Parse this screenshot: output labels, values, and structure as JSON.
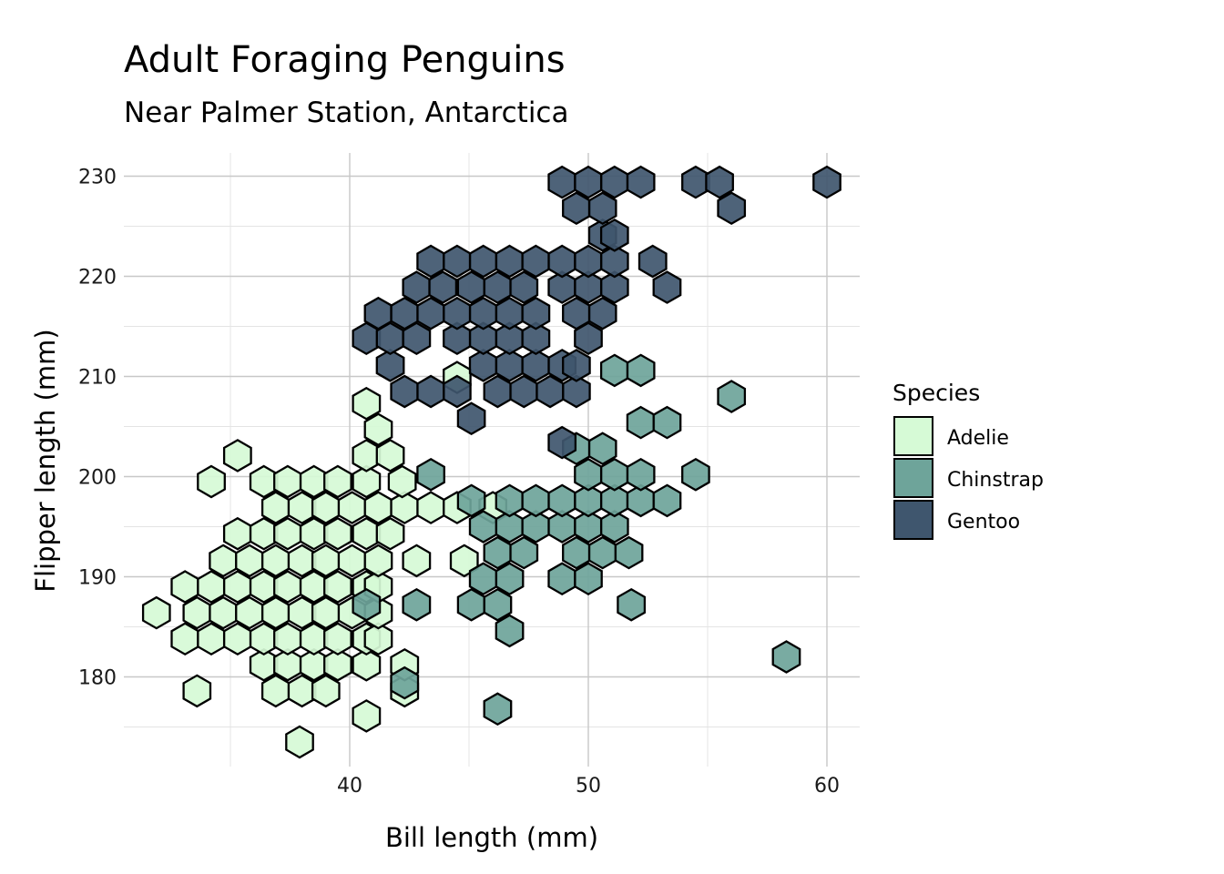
{
  "chart_data": {
    "type": "hexbin",
    "title": "Adult Foraging Penguins",
    "subtitle": "Near Palmer Station, Antarctica",
    "xlabel": "Bill length (mm)",
    "ylabel": "Flipper length (mm)",
    "xlim": [
      31.2,
      61.4
    ],
    "ylim": [
      171.0,
      232.0
    ],
    "x_ticks": [
      40,
      50,
      60
    ],
    "y_ticks": [
      180,
      190,
      200,
      210,
      220,
      230
    ],
    "grid": true,
    "legend": {
      "title": "Species",
      "position": "right",
      "items": [
        {
          "label": "Adelie",
          "color": "#d6fad6"
        },
        {
          "label": "Chinstrap",
          "color": "#6ea49a"
        },
        {
          "label": "Gentoo",
          "color": "#3f566e"
        }
      ]
    },
    "series": [
      {
        "name": "Adelie",
        "color": "#d6fad6",
        "bins": [
          [
            37.9,
            173.5
          ],
          [
            40.7,
            176.1
          ],
          [
            33.6,
            178.6
          ],
          [
            36.9,
            178.6
          ],
          [
            38.0,
            178.6
          ],
          [
            39.0,
            178.6
          ],
          [
            42.3,
            178.6
          ],
          [
            36.4,
            181.2
          ],
          [
            37.4,
            181.2
          ],
          [
            38.5,
            181.2
          ],
          [
            39.5,
            181.2
          ],
          [
            40.7,
            181.2
          ],
          [
            42.3,
            181.2
          ],
          [
            33.1,
            183.8
          ],
          [
            34.2,
            183.8
          ],
          [
            35.3,
            183.8
          ],
          [
            36.4,
            183.8
          ],
          [
            37.4,
            183.8
          ],
          [
            38.5,
            183.8
          ],
          [
            39.5,
            183.8
          ],
          [
            40.7,
            183.8
          ],
          [
            41.2,
            183.8
          ],
          [
            31.9,
            186.4
          ],
          [
            33.6,
            186.4
          ],
          [
            34.7,
            186.4
          ],
          [
            35.8,
            186.4
          ],
          [
            36.9,
            186.4
          ],
          [
            38.0,
            186.4
          ],
          [
            39.0,
            186.4
          ],
          [
            40.1,
            186.4
          ],
          [
            41.2,
            186.4
          ],
          [
            33.1,
            189.0
          ],
          [
            34.2,
            189.0
          ],
          [
            35.3,
            189.0
          ],
          [
            36.4,
            189.0
          ],
          [
            37.4,
            189.0
          ],
          [
            38.5,
            189.0
          ],
          [
            39.5,
            189.0
          ],
          [
            40.7,
            189.0
          ],
          [
            41.2,
            189.0
          ],
          [
            34.7,
            191.6
          ],
          [
            35.8,
            191.6
          ],
          [
            36.9,
            191.6
          ],
          [
            38.0,
            191.6
          ],
          [
            39.0,
            191.6
          ],
          [
            40.1,
            191.6
          ],
          [
            41.2,
            191.6
          ],
          [
            42.8,
            191.6
          ],
          [
            44.8,
            191.6
          ],
          [
            35.3,
            194.3
          ],
          [
            36.4,
            194.3
          ],
          [
            37.4,
            194.3
          ],
          [
            38.5,
            194.3
          ],
          [
            39.5,
            194.3
          ],
          [
            40.7,
            194.3
          ],
          [
            41.7,
            194.3
          ],
          [
            36.9,
            196.9
          ],
          [
            38.0,
            196.9
          ],
          [
            39.0,
            196.9
          ],
          [
            40.1,
            196.9
          ],
          [
            41.2,
            196.9
          ],
          [
            42.3,
            196.9
          ],
          [
            43.4,
            196.9
          ],
          [
            44.5,
            196.9
          ],
          [
            46.0,
            196.9
          ],
          [
            36.4,
            199.5
          ],
          [
            37.4,
            199.5
          ],
          [
            38.5,
            199.5
          ],
          [
            39.5,
            199.5
          ],
          [
            40.7,
            199.5
          ],
          [
            42.2,
            199.5
          ],
          [
            34.2,
            199.5
          ],
          [
            35.3,
            202.1
          ],
          [
            40.7,
            202.1
          ],
          [
            41.7,
            202.1
          ],
          [
            41.2,
            204.7
          ],
          [
            40.7,
            207.3
          ],
          [
            44.5,
            209.9
          ]
        ]
      },
      {
        "name": "Chinstrap",
        "color": "#6ea49a",
        "bins": [
          [
            46.2,
            176.8
          ],
          [
            42.3,
            179.4
          ],
          [
            58.3,
            182.0
          ],
          [
            46.7,
            184.6
          ],
          [
            40.7,
            187.2
          ],
          [
            42.8,
            187.2
          ],
          [
            45.1,
            187.2
          ],
          [
            46.2,
            187.2
          ],
          [
            51.8,
            187.2
          ],
          [
            45.6,
            189.8
          ],
          [
            46.7,
            189.8
          ],
          [
            48.9,
            189.8
          ],
          [
            50.0,
            189.8
          ],
          [
            46.2,
            192.4
          ],
          [
            47.3,
            192.4
          ],
          [
            49.5,
            192.4
          ],
          [
            50.6,
            192.4
          ],
          [
            51.7,
            192.4
          ],
          [
            45.6,
            195.0
          ],
          [
            46.7,
            195.0
          ],
          [
            47.8,
            195.0
          ],
          [
            48.9,
            195.0
          ],
          [
            50.0,
            195.0
          ],
          [
            51.1,
            195.0
          ],
          [
            45.1,
            197.6
          ],
          [
            46.7,
            197.6
          ],
          [
            47.8,
            197.6
          ],
          [
            48.9,
            197.6
          ],
          [
            50.0,
            197.6
          ],
          [
            51.1,
            197.6
          ],
          [
            52.2,
            197.6
          ],
          [
            53.3,
            197.6
          ],
          [
            43.4,
            200.2
          ],
          [
            50.0,
            200.2
          ],
          [
            51.1,
            200.2
          ],
          [
            52.2,
            200.2
          ],
          [
            54.5,
            200.2
          ],
          [
            49.5,
            202.8
          ],
          [
            50.6,
            202.8
          ],
          [
            52.2,
            205.4
          ],
          [
            53.3,
            205.4
          ],
          [
            56.0,
            208.0
          ],
          [
            51.1,
            210.6
          ],
          [
            52.2,
            210.6
          ]
        ]
      },
      {
        "name": "Gentoo",
        "color": "#3f566e",
        "bins": [
          [
            48.9,
            203.4
          ],
          [
            45.1,
            205.8
          ],
          [
            42.3,
            208.5
          ],
          [
            43.4,
            208.5
          ],
          [
            44.5,
            208.5
          ],
          [
            46.2,
            208.5
          ],
          [
            47.3,
            208.5
          ],
          [
            48.4,
            208.5
          ],
          [
            49.5,
            208.5
          ],
          [
            41.7,
            211.1
          ],
          [
            45.6,
            211.1
          ],
          [
            46.7,
            211.1
          ],
          [
            47.8,
            211.1
          ],
          [
            48.9,
            211.1
          ],
          [
            49.5,
            211.1
          ],
          [
            40.7,
            213.8
          ],
          [
            41.7,
            213.8
          ],
          [
            42.8,
            213.8
          ],
          [
            44.5,
            213.8
          ],
          [
            45.6,
            213.8
          ],
          [
            46.7,
            213.8
          ],
          [
            47.8,
            213.8
          ],
          [
            50.0,
            213.8
          ],
          [
            41.2,
            216.3
          ],
          [
            42.3,
            216.3
          ],
          [
            43.4,
            216.3
          ],
          [
            44.5,
            216.3
          ],
          [
            45.6,
            216.3
          ],
          [
            46.7,
            216.3
          ],
          [
            47.8,
            216.3
          ],
          [
            49.5,
            216.3
          ],
          [
            50.6,
            216.3
          ],
          [
            42.8,
            218.9
          ],
          [
            43.9,
            218.9
          ],
          [
            45.1,
            218.9
          ],
          [
            46.2,
            218.9
          ],
          [
            47.3,
            218.9
          ],
          [
            48.9,
            218.9
          ],
          [
            50.0,
            218.9
          ],
          [
            51.1,
            218.9
          ],
          [
            53.3,
            218.9
          ],
          [
            43.4,
            221.5
          ],
          [
            44.5,
            221.5
          ],
          [
            45.6,
            221.5
          ],
          [
            46.7,
            221.5
          ],
          [
            47.8,
            221.5
          ],
          [
            48.9,
            221.5
          ],
          [
            50.0,
            221.5
          ],
          [
            51.1,
            221.5
          ],
          [
            52.7,
            221.5
          ],
          [
            50.6,
            224.1
          ],
          [
            51.1,
            224.1
          ],
          [
            49.5,
            226.8
          ],
          [
            50.6,
            226.8
          ],
          [
            56.0,
            226.8
          ],
          [
            48.9,
            229.4
          ],
          [
            50.0,
            229.4
          ],
          [
            51.1,
            229.4
          ],
          [
            52.2,
            229.4
          ],
          [
            54.5,
            229.4
          ],
          [
            55.5,
            229.4
          ],
          [
            60.0,
            229.4
          ]
        ]
      }
    ]
  }
}
